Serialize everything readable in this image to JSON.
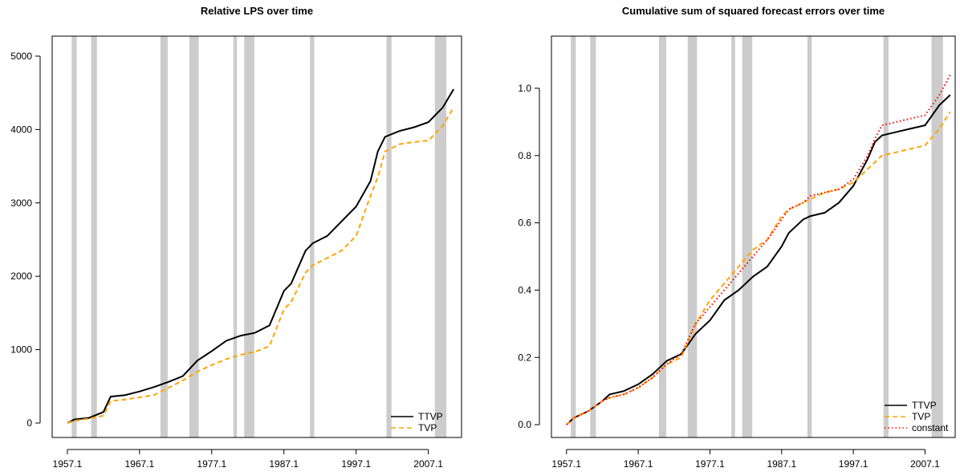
{
  "chart_data": [
    {
      "type": "line",
      "title": "Relative LPS over time",
      "x": [
        1957,
        1958,
        1960,
        1962,
        1963,
        1965,
        1967,
        1969,
        1971,
        1973,
        1975,
        1977,
        1979,
        1981,
        1983,
        1985,
        1987,
        1988,
        1990,
        1991,
        1993,
        1995,
        1997,
        1999,
        2000,
        2001,
        2003,
        2005,
        2007,
        2009,
        2010.5
      ],
      "series": [
        {
          "name": "TTVP",
          "color": "#000000",
          "dash": "solid",
          "values": [
            0,
            50,
            70,
            150,
            360,
            380,
            430,
            490,
            560,
            640,
            850,
            980,
            1120,
            1190,
            1230,
            1330,
            1800,
            1900,
            2350,
            2450,
            2550,
            2750,
            2950,
            3300,
            3700,
            3900,
            3980,
            4030,
            4100,
            4300,
            4550
          ]
        },
        {
          "name": "TVP",
          "color": "#ffa500",
          "dash": "dashed",
          "values": [
            0,
            30,
            60,
            100,
            300,
            320,
            350,
            380,
            480,
            580,
            700,
            790,
            870,
            930,
            970,
            1050,
            1550,
            1650,
            2050,
            2150,
            2250,
            2350,
            2550,
            3100,
            3350,
            3700,
            3800,
            3830,
            3850,
            4050,
            4300
          ]
        }
      ],
      "shading": [
        [
          1957.6,
          1958.3
        ],
        [
          1960.3,
          1961.1
        ],
        [
          1969.9,
          1970.9
        ],
        [
          1973.9,
          1975.2
        ],
        [
          1980.0,
          1980.5
        ],
        [
          1981.5,
          1982.9
        ],
        [
          1990.6,
          1991.2
        ],
        [
          2001.2,
          2001.9
        ],
        [
          2007.9,
          2009.5
        ]
      ],
      "xlim": [
        1954.9,
        2011.6
      ],
      "ylim": [
        -197,
        5273
      ],
      "xticks": [
        {
          "value": 1957,
          "label": "1957.1"
        },
        {
          "value": 1967,
          "label": "1967.1"
        },
        {
          "value": 1977,
          "label": "1977.1"
        },
        {
          "value": 1987,
          "label": "1987.1"
        },
        {
          "value": 1997,
          "label": "1997.1"
        },
        {
          "value": 2007,
          "label": "2007.1"
        }
      ],
      "yticks": [
        0,
        1000,
        2000,
        3000,
        4000,
        5000
      ],
      "legend": "bottom-right"
    },
    {
      "type": "line",
      "title": "Cumulative sum of squared forecast errors over time",
      "x": [
        1957,
        1958,
        1960,
        1962,
        1963,
        1965,
        1967,
        1969,
        1971,
        1973,
        1975,
        1977,
        1979,
        1981,
        1983,
        1985,
        1987,
        1988,
        1990,
        1991,
        1993,
        1995,
        1997,
        1999,
        2000,
        2001,
        2003,
        2005,
        2007,
        2009,
        2010.5
      ],
      "series": [
        {
          "name": "TTVP",
          "color": "#000000",
          "dash": "solid",
          "values": [
            0,
            0.02,
            0.04,
            0.07,
            0.09,
            0.1,
            0.12,
            0.15,
            0.19,
            0.21,
            0.27,
            0.31,
            0.37,
            0.4,
            0.44,
            0.47,
            0.53,
            0.57,
            0.61,
            0.62,
            0.63,
            0.66,
            0.71,
            0.79,
            0.84,
            0.86,
            0.87,
            0.88,
            0.89,
            0.95,
            0.98
          ]
        },
        {
          "name": "TVP",
          "color": "#ffa500",
          "dash": "dashed",
          "values": [
            0,
            0.02,
            0.04,
            0.07,
            0.08,
            0.09,
            0.11,
            0.14,
            0.18,
            0.2,
            0.3,
            0.37,
            0.42,
            0.47,
            0.52,
            0.55,
            0.62,
            0.64,
            0.66,
            0.67,
            0.69,
            0.7,
            0.72,
            0.76,
            0.78,
            0.8,
            0.81,
            0.82,
            0.83,
            0.88,
            0.93
          ]
        },
        {
          "name": "constant",
          "color": "#ff0000",
          "dash": "dotted",
          "values": [
            0,
            0.02,
            0.04,
            0.07,
            0.08,
            0.09,
            0.11,
            0.14,
            0.18,
            0.21,
            0.3,
            0.35,
            0.4,
            0.45,
            0.5,
            0.55,
            0.61,
            0.64,
            0.66,
            0.68,
            0.69,
            0.7,
            0.73,
            0.8,
            0.85,
            0.89,
            0.9,
            0.91,
            0.92,
            0.98,
            1.04
          ]
        }
      ],
      "shading": [
        [
          1957.6,
          1958.3
        ],
        [
          1960.3,
          1961.1
        ],
        [
          1969.9,
          1970.9
        ],
        [
          1973.9,
          1975.2
        ],
        [
          1980.0,
          1980.5
        ],
        [
          1981.5,
          1982.9
        ],
        [
          1990.6,
          1991.2
        ],
        [
          2001.2,
          2001.9
        ],
        [
          2007.9,
          2009.5
        ]
      ],
      "xlim": [
        1954.9,
        2011.2
      ],
      "ylim": [
        -0.038,
        1.155
      ],
      "xticks": [
        {
          "value": 1957,
          "label": "1957.1"
        },
        {
          "value": 1967,
          "label": "1967.1"
        },
        {
          "value": 1977,
          "label": "1977.1"
        },
        {
          "value": 1987,
          "label": "1987.1"
        },
        {
          "value": 1997,
          "label": "1997.1"
        },
        {
          "value": 2007,
          "label": "2007.1"
        }
      ],
      "yticks": [
        {
          "value": 0,
          "label": "0.0"
        },
        0.2,
        0.4,
        0.6,
        0.8,
        {
          "value": 1,
          "label": "1.0"
        }
      ],
      "legend": "bottom-right"
    }
  ]
}
